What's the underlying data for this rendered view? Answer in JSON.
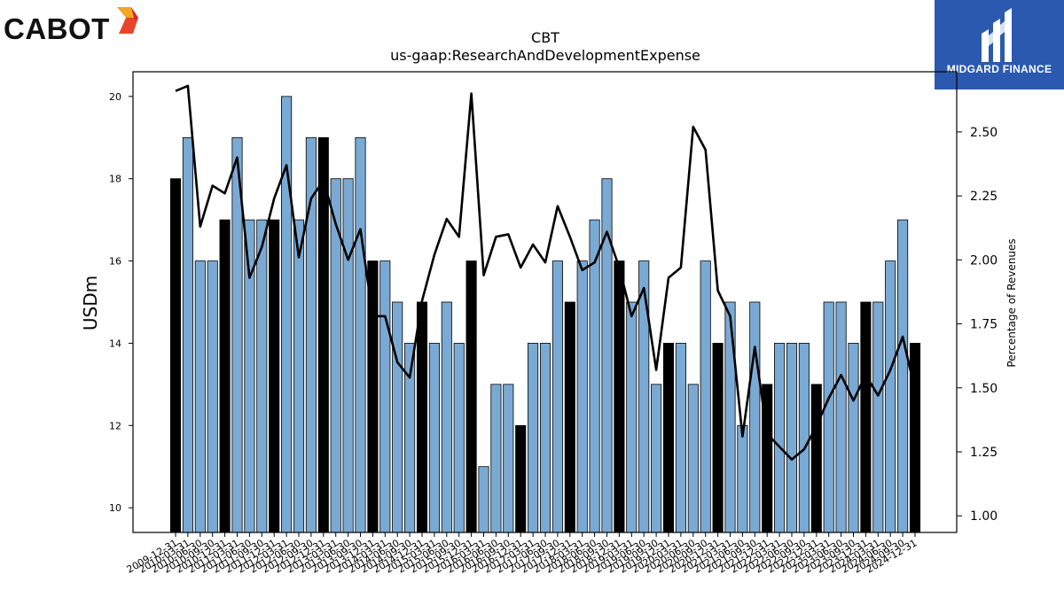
{
  "logos": {
    "left_text": "CABOT",
    "right_text": "MIDGARD FINANCE"
  },
  "chart_data": {
    "type": "bar",
    "title": "CBT",
    "subtitle": "us-gaap:ResearchAndDevelopmentExpense",
    "ylabel": "USDm",
    "y2label": "Percentage of Revenues",
    "ylim": [
      9.4,
      20.6
    ],
    "y2lim": [
      0.935,
      2.735
    ],
    "yticks": [
      10,
      12,
      14,
      16,
      18,
      20
    ],
    "y2ticks": [
      1.0,
      1.25,
      1.5,
      1.75,
      2.0,
      2.25,
      2.5
    ],
    "y2tick_labels": [
      "1.00",
      "1.25",
      "1.50",
      "1.75",
      "2.00",
      "2.25",
      "2.50"
    ],
    "bar_colors": {
      "annual": "#000000",
      "quarter": "#7aaad4"
    },
    "line_color": "#000000",
    "categories": [
      "2009-12-31",
      "2010-03-31",
      "2010-06-30",
      "2010-09-30",
      "2010-12-31",
      "2011-03-31",
      "2011-06-30",
      "2011-09-30",
      "2011-12-31",
      "2012-03-31",
      "2012-06-30",
      "2012-09-30",
      "2012-12-31",
      "2013-03-31",
      "2013-06-30",
      "2013-09-30",
      "2013-12-31",
      "2014-03-31",
      "2014-06-30",
      "2014-09-30",
      "2014-12-31",
      "2015-03-31",
      "2015-06-30",
      "2015-09-30",
      "2015-12-31",
      "2016-03-31",
      "2016-06-30",
      "2016-09-30",
      "2016-12-31",
      "2017-03-31",
      "2017-06-30",
      "2017-09-30",
      "2017-12-31",
      "2018-03-31",
      "2018-06-30",
      "2018-09-30",
      "2018-12-31",
      "2019-03-31",
      "2019-06-30",
      "2019-09-30",
      "2019-12-31",
      "2020-03-31",
      "2020-06-30",
      "2020-09-30",
      "2020-12-31",
      "2021-03-31",
      "2021-06-30",
      "2021-09-30",
      "2021-12-31",
      "2022-03-31",
      "2022-06-30",
      "2022-09-30",
      "2022-12-31",
      "2023-03-31",
      "2023-06-30",
      "2023-09-30",
      "2023-12-31",
      "2024-03-31",
      "2024-06-30",
      "2024-09-30",
      "2024-12-31"
    ],
    "annual": [
      true,
      false,
      false,
      false,
      true,
      false,
      false,
      false,
      true,
      false,
      false,
      false,
      true,
      false,
      false,
      false,
      true,
      false,
      false,
      false,
      true,
      false,
      false,
      false,
      true,
      false,
      false,
      false,
      true,
      false,
      false,
      false,
      true,
      false,
      false,
      false,
      true,
      false,
      false,
      false,
      true,
      false,
      false,
      false,
      true,
      false,
      false,
      false,
      true,
      false,
      false,
      false,
      true,
      false,
      false,
      false,
      true,
      false,
      false,
      false,
      true
    ],
    "series": [
      {
        "name": "",
        "type": "bar",
        "values": [
          18,
          19,
          16,
          16,
          17,
          19,
          17,
          17,
          17,
          20,
          17,
          19,
          19,
          18,
          18,
          19,
          16,
          16,
          15,
          14,
          15,
          14,
          15,
          14,
          16,
          11,
          13,
          13,
          12,
          14,
          14,
          16,
          15,
          16,
          17,
          18,
          16,
          15,
          16,
          13,
          14,
          14,
          13,
          16,
          14,
          15,
          12,
          15,
          13,
          14,
          14,
          14,
          13,
          15,
          15,
          14,
          15,
          15,
          16,
          17,
          14
        ]
      },
      {
        "name": "",
        "type": "line",
        "axis": "right",
        "values": [
          2.66,
          2.68,
          2.13,
          2.29,
          2.26,
          2.4,
          1.93,
          2.05,
          2.24,
          2.37,
          2.01,
          2.24,
          2.31,
          2.14,
          2.0,
          2.12,
          1.78,
          1.78,
          1.6,
          1.54,
          1.84,
          2.02,
          2.16,
          2.09,
          2.65,
          1.94,
          2.09,
          2.1,
          1.97,
          2.06,
          1.99,
          2.21,
          2.09,
          1.96,
          1.99,
          2.11,
          1.97,
          1.78,
          1.89,
          1.57,
          1.93,
          1.97,
          2.52,
          2.43,
          1.88,
          1.78,
          1.31,
          1.66,
          1.32,
          1.27,
          1.22,
          1.26,
          1.35,
          1.46,
          1.55,
          1.45,
          1.55,
          1.47,
          1.57,
          1.7,
          1.49
        ]
      }
    ]
  }
}
